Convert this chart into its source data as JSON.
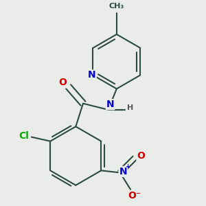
{
  "bg_color": "#eaecea",
  "bond_color": "#2d4a3e",
  "bond_width": 1.5,
  "atom_colors": {
    "C": "#2d4a3e",
    "N": "#0000cc",
    "O": "#cc0000",
    "Cl": "#00aa00",
    "H": "#555555"
  },
  "font_size": 10
}
